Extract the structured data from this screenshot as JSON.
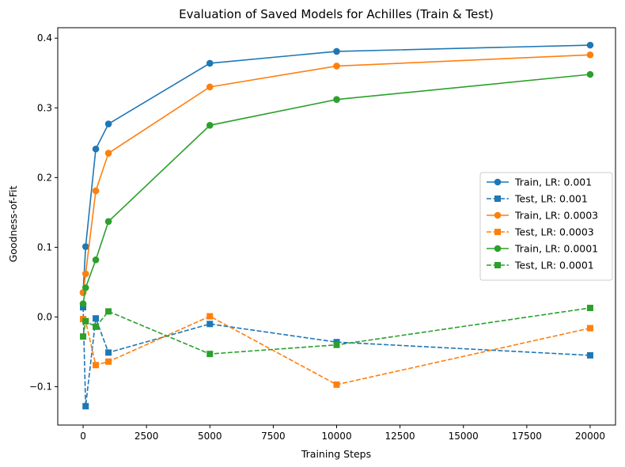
{
  "chart_data": {
    "type": "line",
    "title": "Evaluation of Saved Models for Achilles (Train & Test)",
    "xlabel": "Training Steps",
    "ylabel": "Goodness-of-Fit",
    "xlim": [
      -1000,
      21000
    ],
    "ylim": [
      -0.155,
      0.415
    ],
    "xticks": [
      0,
      2500,
      5000,
      7500,
      10000,
      12500,
      15000,
      17500,
      20000
    ],
    "xtick_labels": [
      "0",
      "2500",
      "5000",
      "7500",
      "10000",
      "12500",
      "15000",
      "17500",
      "20000"
    ],
    "yticks": [
      -0.1,
      0.0,
      0.1,
      0.2,
      0.3,
      0.4
    ],
    "ytick_labels": [
      "−0.1",
      "0.0",
      "0.1",
      "0.2",
      "0.3",
      "0.4"
    ],
    "grid": false,
    "legend_position": "center-right",
    "x": [
      0,
      100,
      500,
      1000,
      5000,
      10000,
      20000
    ],
    "series": [
      {
        "name": "Train, LR: 0.001",
        "color": "#1f77b4",
        "linestyle": "solid",
        "marker": "circle",
        "values": [
          0.035,
          0.101,
          0.241,
          0.277,
          0.364,
          0.381,
          0.39
        ]
      },
      {
        "name": "Test, LR: 0.001",
        "color": "#1f77b4",
        "linestyle": "dashed",
        "marker": "square",
        "values": [
          0.014,
          -0.128,
          -0.002,
          -0.051,
          -0.01,
          -0.036,
          -0.055
        ]
      },
      {
        "name": "Train, LR: 0.0003",
        "color": "#ff7f0e",
        "linestyle": "solid",
        "marker": "circle",
        "values": [
          0.035,
          0.062,
          0.181,
          0.235,
          0.33,
          0.36,
          0.376
        ]
      },
      {
        "name": "Test, LR: 0.0003",
        "color": "#ff7f0e",
        "linestyle": "dashed",
        "marker": "square",
        "values": [
          -0.003,
          -0.006,
          -0.069,
          -0.064,
          0.001,
          -0.097,
          -0.016
        ]
      },
      {
        "name": "Train, LR: 0.0001",
        "color": "#2ca02c",
        "linestyle": "solid",
        "marker": "circle",
        "values": [
          0.019,
          0.042,
          0.082,
          0.137,
          0.275,
          0.312,
          0.348
        ]
      },
      {
        "name": "Test, LR: 0.0001",
        "color": "#2ca02c",
        "linestyle": "dashed",
        "marker": "square",
        "values": [
          -0.028,
          -0.006,
          -0.014,
          0.008,
          -0.053,
          -0.04,
          0.013
        ]
      }
    ]
  }
}
